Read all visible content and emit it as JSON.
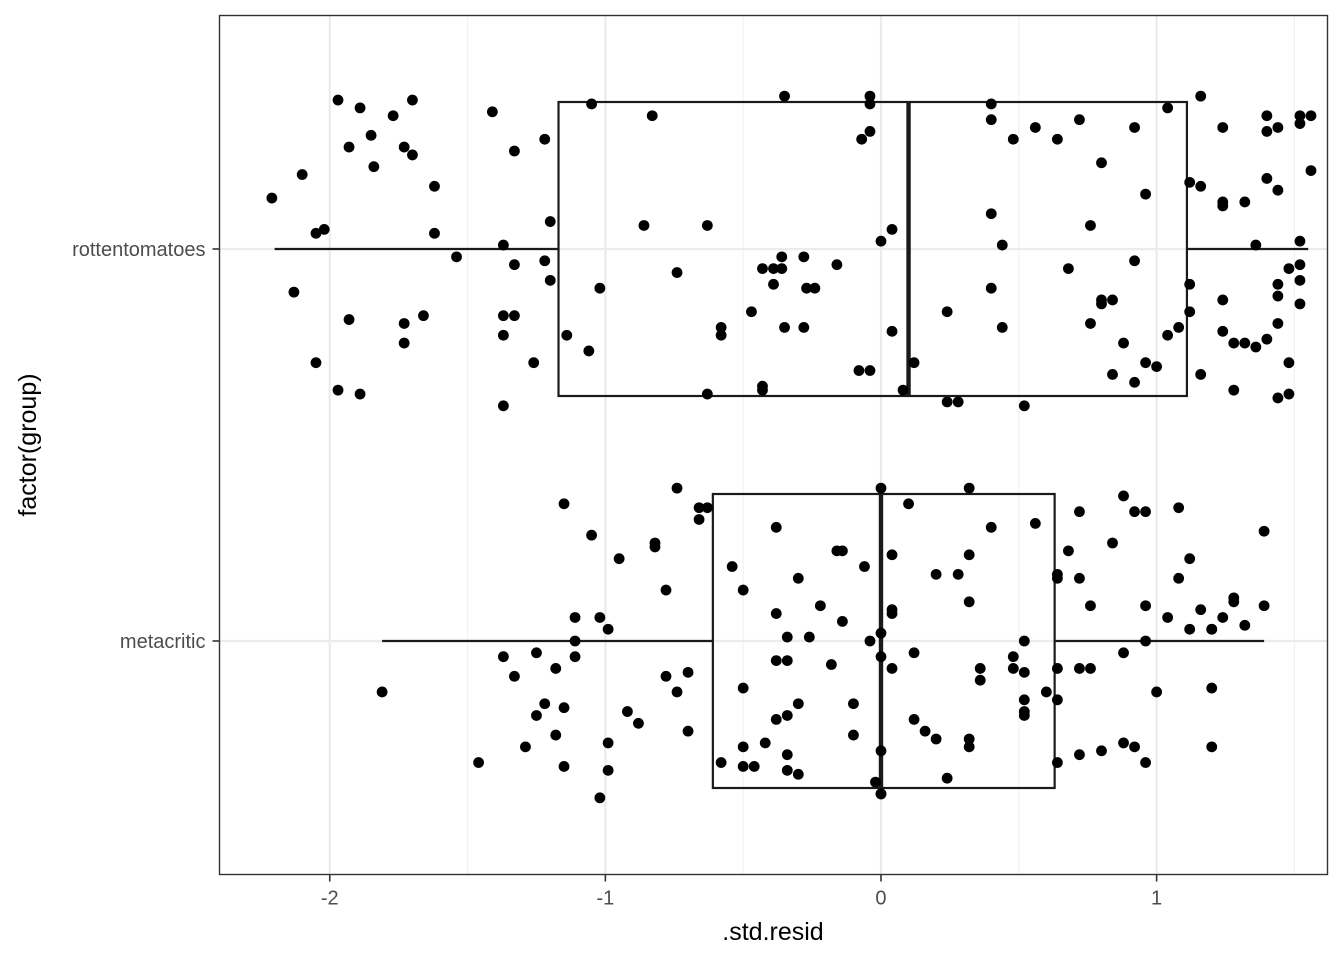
{
  "chart_data": {
    "type": "boxplot",
    "xlabel": ".std.resid",
    "ylabel": "factor(group)",
    "xlim": [
      -2.4,
      1.62
    ],
    "x_ticks": [
      -2,
      -1,
      0,
      1
    ],
    "x_tick_labels": [
      "-2",
      "-1",
      "0",
      "1"
    ],
    "categories": [
      "metacritic",
      "rottentomatoes"
    ],
    "grid": true,
    "theme": "black-and-white",
    "colors": {
      "points": "#000000",
      "box": "#1a1a1a",
      "grid_major": "#ebebeb",
      "panel_border": "#333333"
    },
    "boxes": [
      {
        "group": "rottentomatoes",
        "whisker_low": -2.2,
        "q1": -1.17,
        "median": 0.1,
        "q3": 1.11,
        "whisker_high": 1.55
      },
      {
        "group": "metacritic",
        "whisker_low": -1.81,
        "q1": -0.61,
        "median": 0.0,
        "q3": 0.63,
        "whisker_high": 1.39
      }
    ],
    "points": {
      "rottentomatoes": [
        [
          -2.21,
          0.13
        ],
        [
          -2.1,
          0.19
        ],
        [
          -2.05,
          0.04
        ],
        [
          -2.02,
          0.05
        ],
        [
          -2.13,
          -0.11
        ],
        [
          -1.97,
          0.38
        ],
        [
          -1.89,
          0.36
        ],
        [
          -1.85,
          0.29
        ],
        [
          -1.93,
          0.26
        ],
        [
          -1.84,
          0.21
        ],
        [
          -1.77,
          0.34
        ],
        [
          -1.73,
          0.26
        ],
        [
          -1.7,
          0.38
        ],
        [
          -1.7,
          0.24
        ],
        [
          -1.62,
          0.16
        ],
        [
          -1.62,
          0.04
        ],
        [
          -2.05,
          -0.29
        ],
        [
          -1.97,
          -0.36
        ],
        [
          -1.93,
          -0.18
        ],
        [
          -1.89,
          -0.37
        ],
        [
          -1.73,
          -0.19
        ],
        [
          -1.73,
          -0.24
        ],
        [
          -1.66,
          -0.17
        ],
        [
          -1.54,
          -0.02
        ],
        [
          -1.41,
          0.35
        ],
        [
          -1.33,
          0.25
        ],
        [
          -1.37,
          0.01
        ],
        [
          -1.33,
          -0.04
        ],
        [
          -1.37,
          -0.17
        ],
        [
          -1.33,
          -0.17
        ],
        [
          -1.37,
          -0.22
        ],
        [
          -1.37,
          -0.4
        ],
        [
          -1.26,
          -0.29
        ],
        [
          -1.22,
          -0.03
        ],
        [
          -1.2,
          0.07
        ],
        [
          -1.22,
          0.28
        ],
        [
          -1.2,
          -0.08
        ],
        [
          -1.14,
          -0.22
        ],
        [
          -1.06,
          -0.26
        ],
        [
          -1.02,
          -0.1
        ],
        [
          -1.05,
          0.37
        ],
        [
          -0.83,
          0.34
        ],
        [
          -0.86,
          0.06
        ],
        [
          -0.74,
          -0.06
        ],
        [
          -0.63,
          0.06
        ],
        [
          -0.63,
          -0.37
        ],
        [
          -0.58,
          -0.2
        ],
        [
          -0.58,
          -0.22
        ],
        [
          -0.47,
          -0.16
        ],
        [
          -0.43,
          -0.05
        ],
        [
          -0.43,
          -0.35
        ],
        [
          -0.43,
          -0.36
        ],
        [
          -0.39,
          -0.05
        ],
        [
          -0.39,
          -0.09
        ],
        [
          -0.36,
          -0.02
        ],
        [
          -0.36,
          -0.05
        ],
        [
          -0.35,
          -0.2
        ],
        [
          -0.35,
          0.39
        ],
        [
          -0.28,
          -0.02
        ],
        [
          -0.27,
          -0.1
        ],
        [
          -0.28,
          -0.2
        ],
        [
          -0.24,
          -0.1
        ],
        [
          -0.16,
          -0.04
        ],
        [
          -0.08,
          -0.31
        ],
        [
          -0.07,
          0.28
        ],
        [
          -0.04,
          0.3
        ],
        [
          -0.04,
          0.39
        ],
        [
          -0.04,
          0.37
        ],
        [
          -0.04,
          -0.31
        ],
        [
          0.0,
          0.02
        ],
        [
          0.04,
          0.05
        ],
        [
          0.04,
          -0.21
        ],
        [
          0.08,
          -0.36
        ],
        [
          0.12,
          -0.29
        ],
        [
          0.24,
          -0.16
        ],
        [
          0.24,
          -0.39
        ],
        [
          0.28,
          -0.39
        ],
        [
          0.4,
          0.37
        ],
        [
          0.4,
          0.33
        ],
        [
          0.4,
          0.09
        ],
        [
          0.4,
          -0.1
        ],
        [
          0.44,
          0.01
        ],
        [
          0.44,
          -0.2
        ],
        [
          0.48,
          0.28
        ],
        [
          0.52,
          -0.4
        ],
        [
          0.56,
          0.31
        ],
        [
          0.64,
          0.28
        ],
        [
          0.68,
          -0.05
        ],
        [
          0.72,
          0.33
        ],
        [
          0.76,
          0.06
        ],
        [
          0.76,
          -0.19
        ],
        [
          0.8,
          0.22
        ],
        [
          0.8,
          -0.13
        ],
        [
          0.8,
          -0.14
        ],
        [
          0.84,
          -0.13
        ],
        [
          0.84,
          -0.32
        ],
        [
          0.88,
          -0.24
        ],
        [
          0.92,
          0.31
        ],
        [
          0.92,
          -0.03
        ],
        [
          0.92,
          -0.34
        ],
        [
          0.96,
          0.14
        ],
        [
          0.96,
          -0.29
        ],
        [
          1.0,
          -0.3
        ],
        [
          1.04,
          0.36
        ],
        [
          1.04,
          -0.22
        ],
        [
          1.08,
          -0.2
        ],
        [
          1.12,
          0.17
        ],
        [
          1.12,
          -0.09
        ],
        [
          1.12,
          -0.16
        ],
        [
          1.16,
          0.39
        ],
        [
          1.16,
          0.16
        ],
        [
          1.16,
          -0.32
        ],
        [
          1.24,
          0.31
        ],
        [
          1.24,
          0.12
        ],
        [
          1.24,
          0.11
        ],
        [
          1.24,
          -0.13
        ],
        [
          1.24,
          -0.21
        ],
        [
          1.28,
          -0.24
        ],
        [
          1.28,
          -0.36
        ],
        [
          1.32,
          0.12
        ],
        [
          1.32,
          -0.24
        ],
        [
          1.36,
          0.01
        ],
        [
          1.4,
          0.3
        ],
        [
          1.4,
          0.18
        ],
        [
          1.4,
          -0.23
        ],
        [
          1.44,
          0.15
        ],
        [
          1.44,
          -0.09
        ],
        [
          1.44,
          -0.12
        ],
        [
          1.44,
          -0.19
        ],
        [
          1.44,
          -0.38
        ],
        [
          1.48,
          -0.05
        ],
        [
          1.48,
          -0.29
        ],
        [
          1.48,
          -0.37
        ],
        [
          1.52,
          0.34
        ],
        [
          1.52,
          0.32
        ],
        [
          1.52,
          0.02
        ],
        [
          1.52,
          -0.04
        ],
        [
          1.52,
          -0.08
        ],
        [
          1.52,
          -0.14
        ],
        [
          1.56,
          0.34
        ],
        [
          1.56,
          0.2
        ],
        [
          1.4,
          0.34
        ],
        [
          1.44,
          0.31
        ],
        [
          1.36,
          -0.25
        ]
      ],
      "metacritic": [
        [
          -1.81,
          -0.13
        ],
        [
          -1.46,
          -0.31
        ],
        [
          -1.37,
          -0.04
        ],
        [
          -1.33,
          -0.09
        ],
        [
          -1.29,
          -0.27
        ],
        [
          -1.25,
          -0.03
        ],
        [
          -1.25,
          -0.19
        ],
        [
          -1.22,
          -0.16
        ],
        [
          -1.18,
          -0.07
        ],
        [
          -1.18,
          -0.24
        ],
        [
          -1.15,
          0.35
        ],
        [
          -1.15,
          -0.17
        ],
        [
          -1.15,
          -0.32
        ],
        [
          -1.11,
          0.06
        ],
        [
          -1.11,
          0.0
        ],
        [
          -1.11,
          -0.04
        ],
        [
          -1.05,
          0.27
        ],
        [
          -1.02,
          0.06
        ],
        [
          -1.02,
          -0.4
        ],
        [
          -0.99,
          0.03
        ],
        [
          -0.99,
          -0.26
        ],
        [
          -0.99,
          -0.33
        ],
        [
          -0.95,
          0.21
        ],
        [
          -0.92,
          -0.18
        ],
        [
          -0.88,
          -0.21
        ],
        [
          -0.82,
          0.25
        ],
        [
          -0.82,
          0.24
        ],
        [
          -0.78,
          0.13
        ],
        [
          -0.78,
          -0.09
        ],
        [
          -0.74,
          0.39
        ],
        [
          -0.74,
          -0.13
        ],
        [
          -0.7,
          -0.08
        ],
        [
          -0.7,
          -0.23
        ],
        [
          -0.66,
          0.34
        ],
        [
          -0.66,
          0.31
        ],
        [
          -0.63,
          0.34
        ],
        [
          -0.58,
          -0.31
        ],
        [
          -0.54,
          0.19
        ],
        [
          -0.5,
          0.13
        ],
        [
          -0.5,
          -0.12
        ],
        [
          -0.5,
          -0.27
        ],
        [
          -0.5,
          -0.32
        ],
        [
          -0.46,
          -0.32
        ],
        [
          -0.42,
          -0.26
        ],
        [
          -0.38,
          0.29
        ],
        [
          -0.38,
          0.07
        ],
        [
          -0.38,
          -0.05
        ],
        [
          -0.38,
          -0.2
        ],
        [
          -0.34,
          0.01
        ],
        [
          -0.34,
          -0.05
        ],
        [
          -0.34,
          -0.19
        ],
        [
          -0.34,
          -0.29
        ],
        [
          -0.34,
          -0.33
        ],
        [
          -0.3,
          0.16
        ],
        [
          -0.3,
          -0.16
        ],
        [
          -0.3,
          -0.34
        ],
        [
          -0.26,
          0.01
        ],
        [
          -0.22,
          0.09
        ],
        [
          -0.18,
          -0.06
        ],
        [
          -0.16,
          0.23
        ],
        [
          -0.14,
          0.23
        ],
        [
          -0.14,
          0.05
        ],
        [
          -0.1,
          -0.16
        ],
        [
          -0.1,
          -0.24
        ],
        [
          -0.06,
          0.19
        ],
        [
          -0.04,
          0.0
        ],
        [
          -0.02,
          -0.36
        ],
        [
          0.0,
          0.39
        ],
        [
          0.0,
          0.02
        ],
        [
          0.0,
          -0.04
        ],
        [
          0.0,
          -0.28
        ],
        [
          0.0,
          -0.39
        ],
        [
          0.0,
          -0.39
        ],
        [
          0.04,
          0.22
        ],
        [
          0.04,
          0.08
        ],
        [
          0.04,
          0.07
        ],
        [
          0.04,
          -0.07
        ],
        [
          0.1,
          0.35
        ],
        [
          0.12,
          -0.03
        ],
        [
          0.12,
          -0.2
        ],
        [
          0.16,
          -0.23
        ],
        [
          0.2,
          0.17
        ],
        [
          0.2,
          -0.25
        ],
        [
          0.24,
          -0.35
        ],
        [
          0.28,
          0.17
        ],
        [
          0.32,
          0.39
        ],
        [
          0.32,
          0.22
        ],
        [
          0.32,
          0.1
        ],
        [
          0.32,
          -0.25
        ],
        [
          0.32,
          -0.27
        ],
        [
          0.36,
          -0.07
        ],
        [
          0.36,
          -0.1
        ],
        [
          0.4,
          0.29
        ],
        [
          0.48,
          -0.04
        ],
        [
          0.48,
          -0.07
        ],
        [
          0.52,
          0.0
        ],
        [
          0.52,
          -0.08
        ],
        [
          0.52,
          -0.15
        ],
        [
          0.52,
          -0.19
        ],
        [
          0.52,
          -0.18
        ],
        [
          0.56,
          0.3
        ],
        [
          0.6,
          -0.13
        ],
        [
          0.64,
          0.17
        ],
        [
          0.64,
          0.16
        ],
        [
          0.64,
          -0.07
        ],
        [
          0.64,
          -0.15
        ],
        [
          0.64,
          -0.31
        ],
        [
          0.68,
          0.23
        ],
        [
          0.72,
          0.33
        ],
        [
          0.72,
          0.16
        ],
        [
          0.72,
          -0.07
        ],
        [
          0.72,
          -0.29
        ],
        [
          0.76,
          0.09
        ],
        [
          0.76,
          -0.07
        ],
        [
          0.8,
          -0.28
        ],
        [
          0.84,
          0.25
        ],
        [
          0.88,
          0.37
        ],
        [
          0.88,
          -0.03
        ],
        [
          0.88,
          -0.26
        ],
        [
          0.92,
          0.33
        ],
        [
          0.92,
          -0.27
        ],
        [
          0.96,
          0.33
        ],
        [
          0.96,
          0.09
        ],
        [
          0.96,
          0.0
        ],
        [
          0.96,
          -0.31
        ],
        [
          1.0,
          -0.13
        ],
        [
          1.04,
          0.06
        ],
        [
          1.08,
          0.34
        ],
        [
          1.08,
          0.16
        ],
        [
          1.12,
          0.21
        ],
        [
          1.12,
          0.03
        ],
        [
          1.16,
          0.08
        ],
        [
          1.2,
          0.03
        ],
        [
          1.2,
          -0.12
        ],
        [
          1.2,
          -0.27
        ],
        [
          1.24,
          0.06
        ],
        [
          1.28,
          0.11
        ],
        [
          1.28,
          0.1
        ],
        [
          1.32,
          0.04
        ],
        [
          1.39,
          0.28
        ],
        [
          1.39,
          0.09
        ],
        [
          1.2,
          0.03
        ]
      ]
    }
  }
}
